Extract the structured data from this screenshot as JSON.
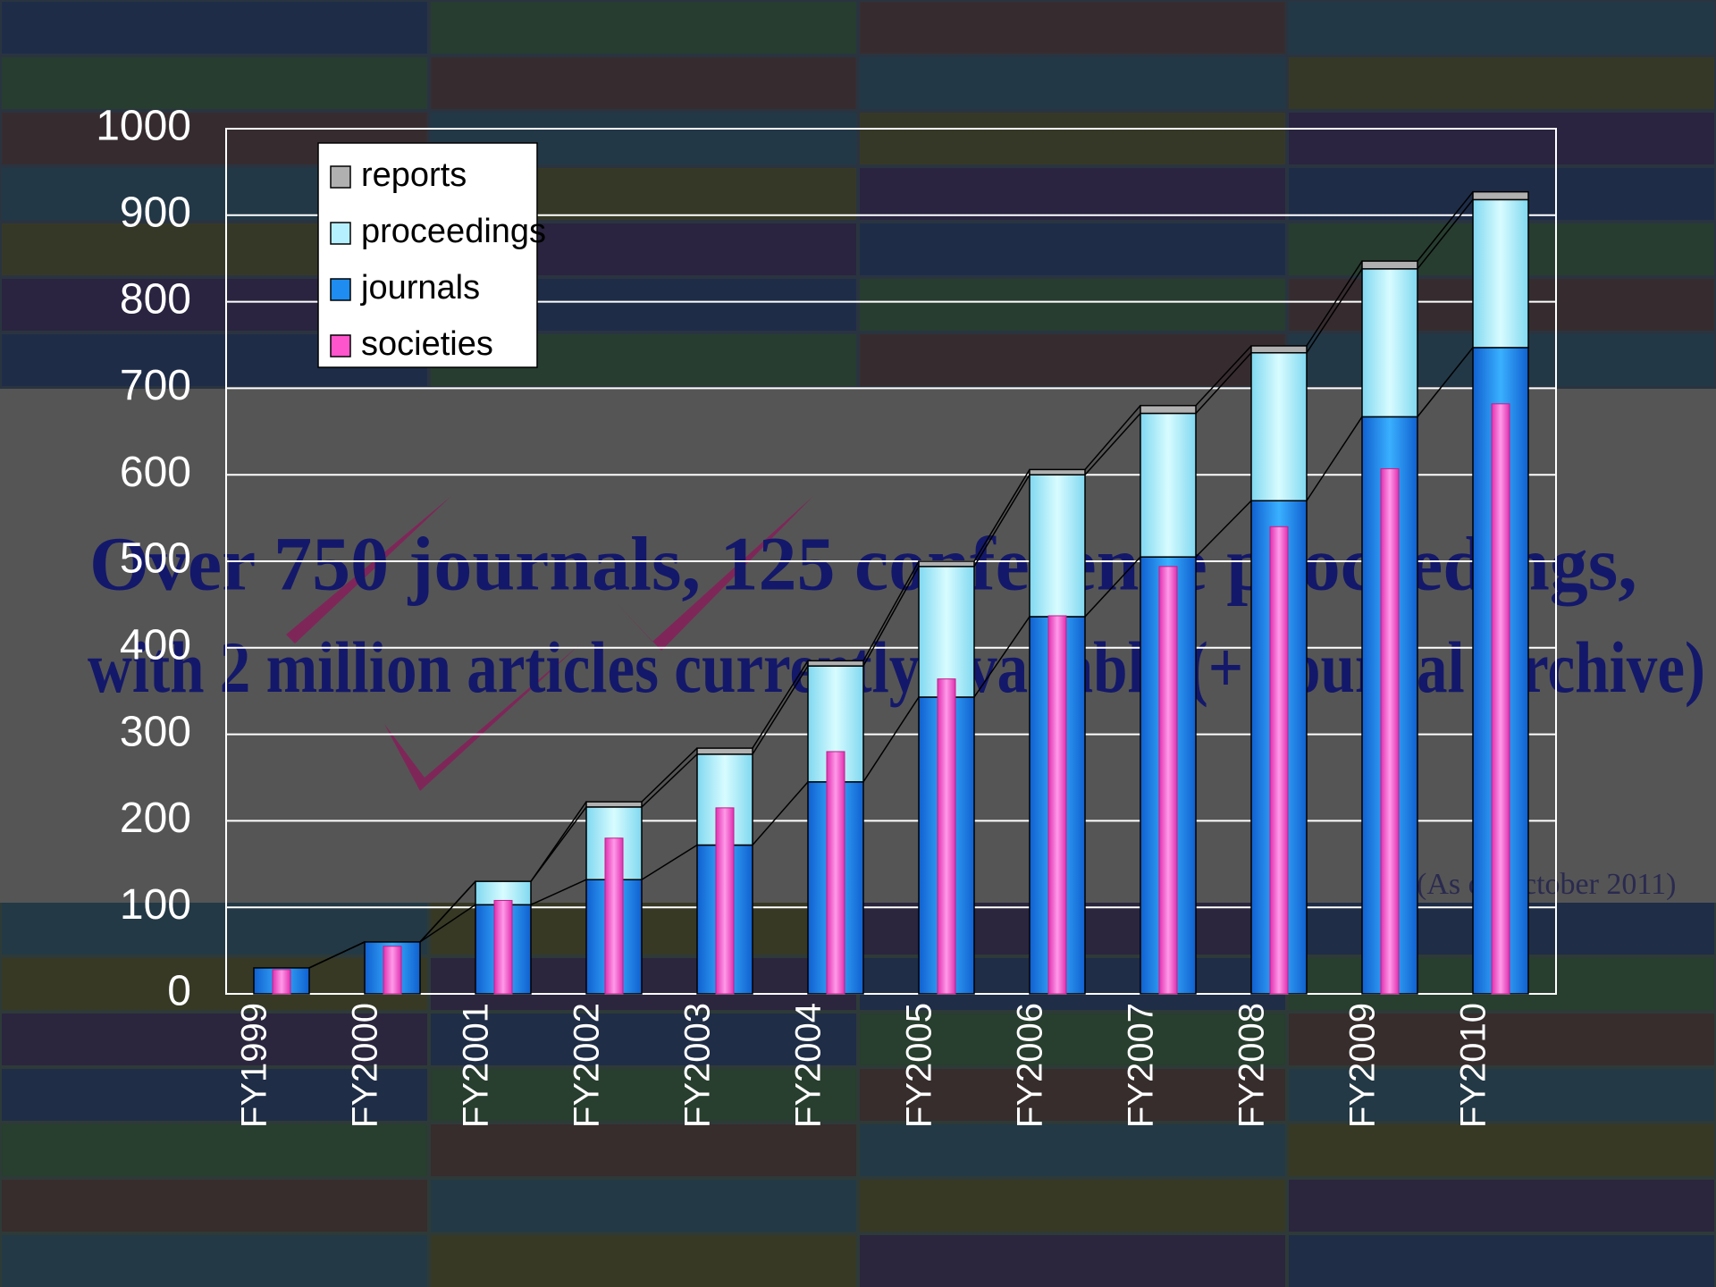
{
  "chart_data": {
    "type": "bar",
    "annotations": [
      "Over 750 journals, 125 conference proceedings,",
      "with 2 million articles currently available (+ Journal Archive)",
      "(As of October 2011)"
    ],
    "categories": [
      "FY1999",
      "FY2000",
      "FY2001",
      "FY2002",
      "FY2003",
      "FY2004",
      "FY2005",
      "FY2006",
      "FY2007",
      "FY2008",
      "FY2009",
      "FY2010"
    ],
    "series": [
      {
        "name": "journals",
        "color": "#1e8cf0",
        "values": [
          30,
          60,
          103,
          132,
          172,
          245,
          343,
          436,
          505,
          570,
          667,
          747
        ]
      },
      {
        "name": "proceedings",
        "color": "#b4f0ff",
        "values": [
          0,
          0,
          27,
          84,
          105,
          134,
          151,
          164,
          166,
          171,
          171,
          171
        ]
      },
      {
        "name": "reports",
        "color": "#b0b0b0",
        "values": [
          0,
          0,
          0,
          6,
          7,
          6,
          6,
          6,
          9,
          8,
          9,
          9
        ]
      },
      {
        "name": "societies",
        "color": "#ff55cc",
        "values": [
          28,
          55,
          108,
          180,
          215,
          280,
          364,
          437,
          494,
          540,
          607,
          682
        ]
      }
    ],
    "stacked": [
      "journals",
      "proceedings",
      "reports"
    ],
    "ylim": [
      0,
      1000
    ],
    "yticks": [
      0,
      100,
      200,
      300,
      400,
      500,
      600,
      700,
      800,
      900,
      1000
    ],
    "grid": true
  }
}
